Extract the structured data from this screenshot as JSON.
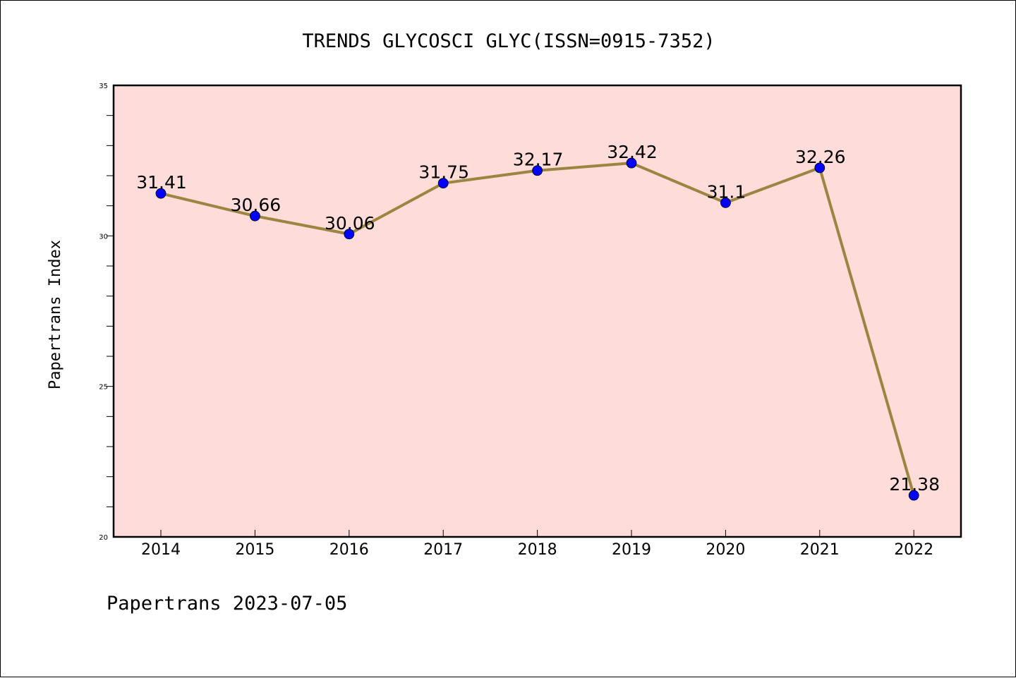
{
  "chart_data": {
    "type": "line",
    "title": "TRENDS GLYCOSCI GLYC(ISSN=0915-7352)",
    "ylabel": "Papertrans Index",
    "xlabel": "",
    "footer": "Papertrans 2023-07-05",
    "categories": [
      "2014",
      "2015",
      "2016",
      "2017",
      "2018",
      "2019",
      "2020",
      "2021",
      "2022"
    ],
    "series": [
      {
        "values": [
          31.41,
          30.66,
          30.06,
          31.75,
          32.17,
          32.42,
          31.1,
          32.26,
          21.38
        ],
        "labels": [
          "31.41",
          "30.66",
          "30.06",
          "31.75",
          "32.17",
          "32.42",
          "31.1",
          "32.26",
          "21.38"
        ]
      }
    ],
    "ylim": [
      20,
      35
    ],
    "yticks": [
      "20",
      "25",
      "30",
      "35"
    ],
    "grid": false,
    "colors": {
      "plot_background": "#fddcd9",
      "line": "#9b8540",
      "marker": "#0000ff"
    }
  }
}
